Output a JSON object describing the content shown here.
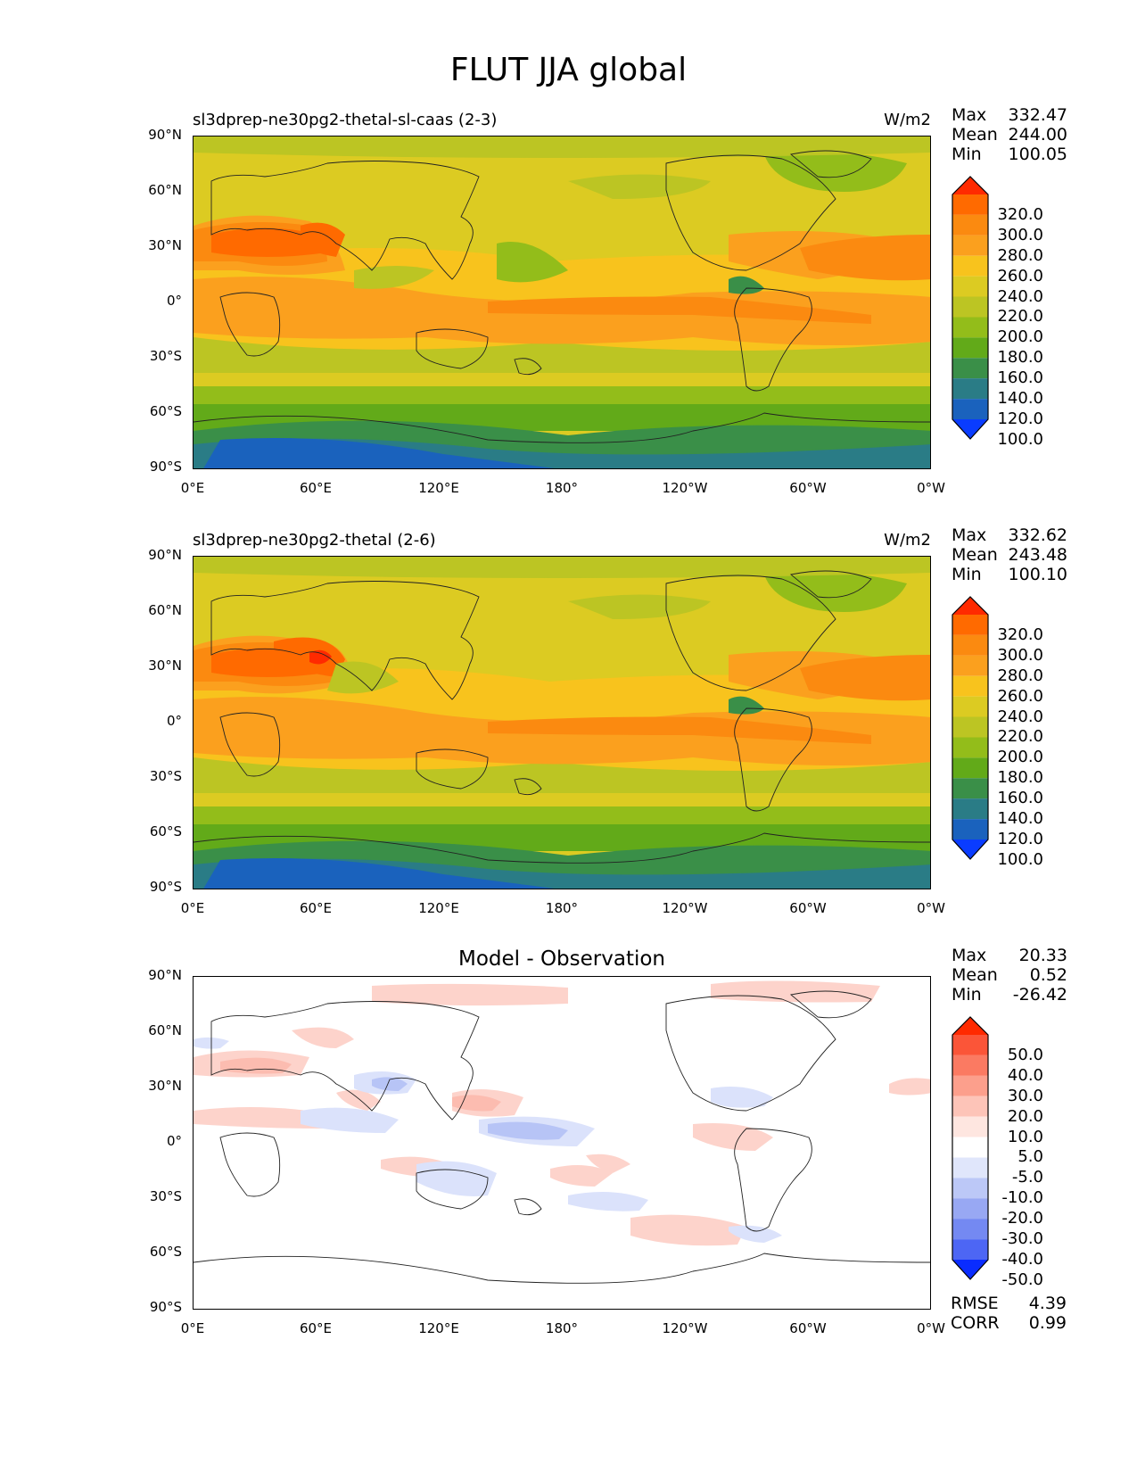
{
  "figure_title": "FLUT JJA global",
  "y_ticks": [
    "90°N",
    "60°N",
    "30°N",
    "0°",
    "30°S",
    "60°S",
    "90°S"
  ],
  "x_ticks": [
    "0°E",
    "60°E",
    "120°E",
    "180°",
    "120°W",
    "60°W",
    "0°W"
  ],
  "panels": [
    {
      "title_left": "sl3dprep-ne30pg2-thetal-sl-caas (2-3)",
      "title_center": "",
      "units": "W/m2",
      "stats": {
        "max_label": "Max",
        "max": "332.47",
        "mean_label": "Mean",
        "mean": "244.00",
        "min_label": "Min",
        "min": "100.05"
      },
      "colorbar_labels": [
        "320.0",
        "300.0",
        "280.0",
        "260.0",
        "240.0",
        "220.0",
        "200.0",
        "180.0",
        "160.0",
        "140.0",
        "120.0",
        "100.0"
      ],
      "colorbar_colors": [
        "#ff2a00",
        "#ff6a00",
        "#fb8a10",
        "#fba01e",
        "#f8c31d",
        "#dccb22",
        "#bcc523",
        "#93bd1a",
        "#62aa19",
        "#3a8f48",
        "#2a7c86",
        "#1a62bd",
        "#0a3cff"
      ]
    },
    {
      "title_left": "sl3dprep-ne30pg2-thetal (2-6)",
      "title_center": "",
      "units": "W/m2",
      "stats": {
        "max_label": "Max",
        "max": "332.62",
        "mean_label": "Mean",
        "mean": "243.48",
        "min_label": "Min",
        "min": "100.10"
      },
      "colorbar_labels": [
        "320.0",
        "300.0",
        "280.0",
        "260.0",
        "240.0",
        "220.0",
        "200.0",
        "180.0",
        "160.0",
        "140.0",
        "120.0",
        "100.0"
      ],
      "colorbar_colors": [
        "#ff2a00",
        "#ff6a00",
        "#fb8a10",
        "#fba01e",
        "#f8c31d",
        "#dccb22",
        "#bcc523",
        "#93bd1a",
        "#62aa19",
        "#3a8f48",
        "#2a7c86",
        "#1a62bd",
        "#0a3cff"
      ]
    },
    {
      "title_left": "",
      "title_center": "Model - Observation",
      "units": "",
      "stats": {
        "max_label": "Max",
        "max": "20.33",
        "mean_label": "Mean",
        "mean": "0.52",
        "min_label": "Min",
        "min": "-26.42"
      },
      "colorbar_labels": [
        "50.0",
        "40.0",
        "30.0",
        "20.0",
        "10.0",
        "5.0",
        "-5.0",
        "-10.0",
        "-20.0",
        "-30.0",
        "-40.0",
        "-50.0"
      ],
      "colorbar_colors": [
        "#ff2a00",
        "#fb5538",
        "#fb7a62",
        "#fc9f8c",
        "#fdc4b8",
        "#fee6e0",
        "#ffffff",
        "#e0e6fb",
        "#bcc8f7",
        "#98a8f3",
        "#7489f2",
        "#4d66f4",
        "#0a2cff"
      ],
      "metrics": {
        "rmse_label": "RMSE",
        "rmse": "4.39",
        "corr_label": "CORR",
        "corr": "0.99"
      }
    }
  ]
}
